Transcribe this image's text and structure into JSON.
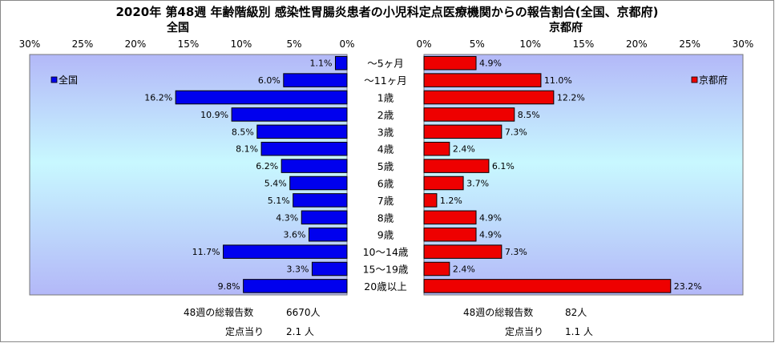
{
  "chart_data": {
    "type": "bar",
    "orientation": "horizontal",
    "layout": "back-to-back",
    "title": "2020年 第48週 年齢階級別 感染性胃腸炎患者の小児科定点医療機関からの報告割合(全国、京都府)",
    "categories": [
      "～5ヶ月",
      "～11ヶ月",
      "1歳",
      "2歳",
      "3歳",
      "4歳",
      "5歳",
      "6歳",
      "7歳",
      "8歳",
      "9歳",
      "10～14歳",
      "15～19歳",
      "20歳以上"
    ],
    "xlim": [
      0,
      30
    ],
    "xticks": [
      "0%",
      "5%",
      "10%",
      "15%",
      "20%",
      "25%",
      "30%"
    ],
    "grid": false,
    "series": [
      {
        "name": "全国",
        "panel_title": "全国",
        "side": "left",
        "color": "#0000ee",
        "values": [
          1.1,
          6.0,
          16.2,
          10.9,
          8.5,
          8.1,
          6.2,
          5.4,
          5.1,
          4.3,
          3.6,
          11.7,
          3.3,
          9.8
        ],
        "value_labels": [
          "1.1%",
          "6.0%",
          "16.2%",
          "10.9%",
          "8.5%",
          "8.1%",
          "6.2%",
          "5.4%",
          "5.1%",
          "4.3%",
          "3.6%",
          "11.7%",
          "3.3%",
          "9.8%"
        ],
        "legend_placement": "top-left",
        "footer": {
          "total_label": "48週の総報告数",
          "total_value": "6670人",
          "per_site_label": "定点当り",
          "per_site_value": "2.1 人"
        }
      },
      {
        "name": "京都府",
        "panel_title": "京都府",
        "side": "right",
        "color": "#ee0000",
        "values": [
          4.9,
          11.0,
          12.2,
          8.5,
          7.3,
          2.4,
          6.1,
          3.7,
          1.2,
          4.9,
          4.9,
          7.3,
          2.4,
          23.2
        ],
        "value_labels": [
          "4.9%",
          "11.0%",
          "12.2%",
          "8.5%",
          "7.3%",
          "2.4%",
          "6.1%",
          "3.7%",
          "1.2%",
          "4.9%",
          "4.9%",
          "7.3%",
          "2.4%",
          "23.2%"
        ],
        "legend_placement": "top-right",
        "footer": {
          "total_label": "48週の総報告数",
          "total_value": "82人",
          "per_site_label": "定点当り",
          "per_site_value": "1.1 人"
        }
      }
    ],
    "plot_background": "#c8f4ff"
  }
}
